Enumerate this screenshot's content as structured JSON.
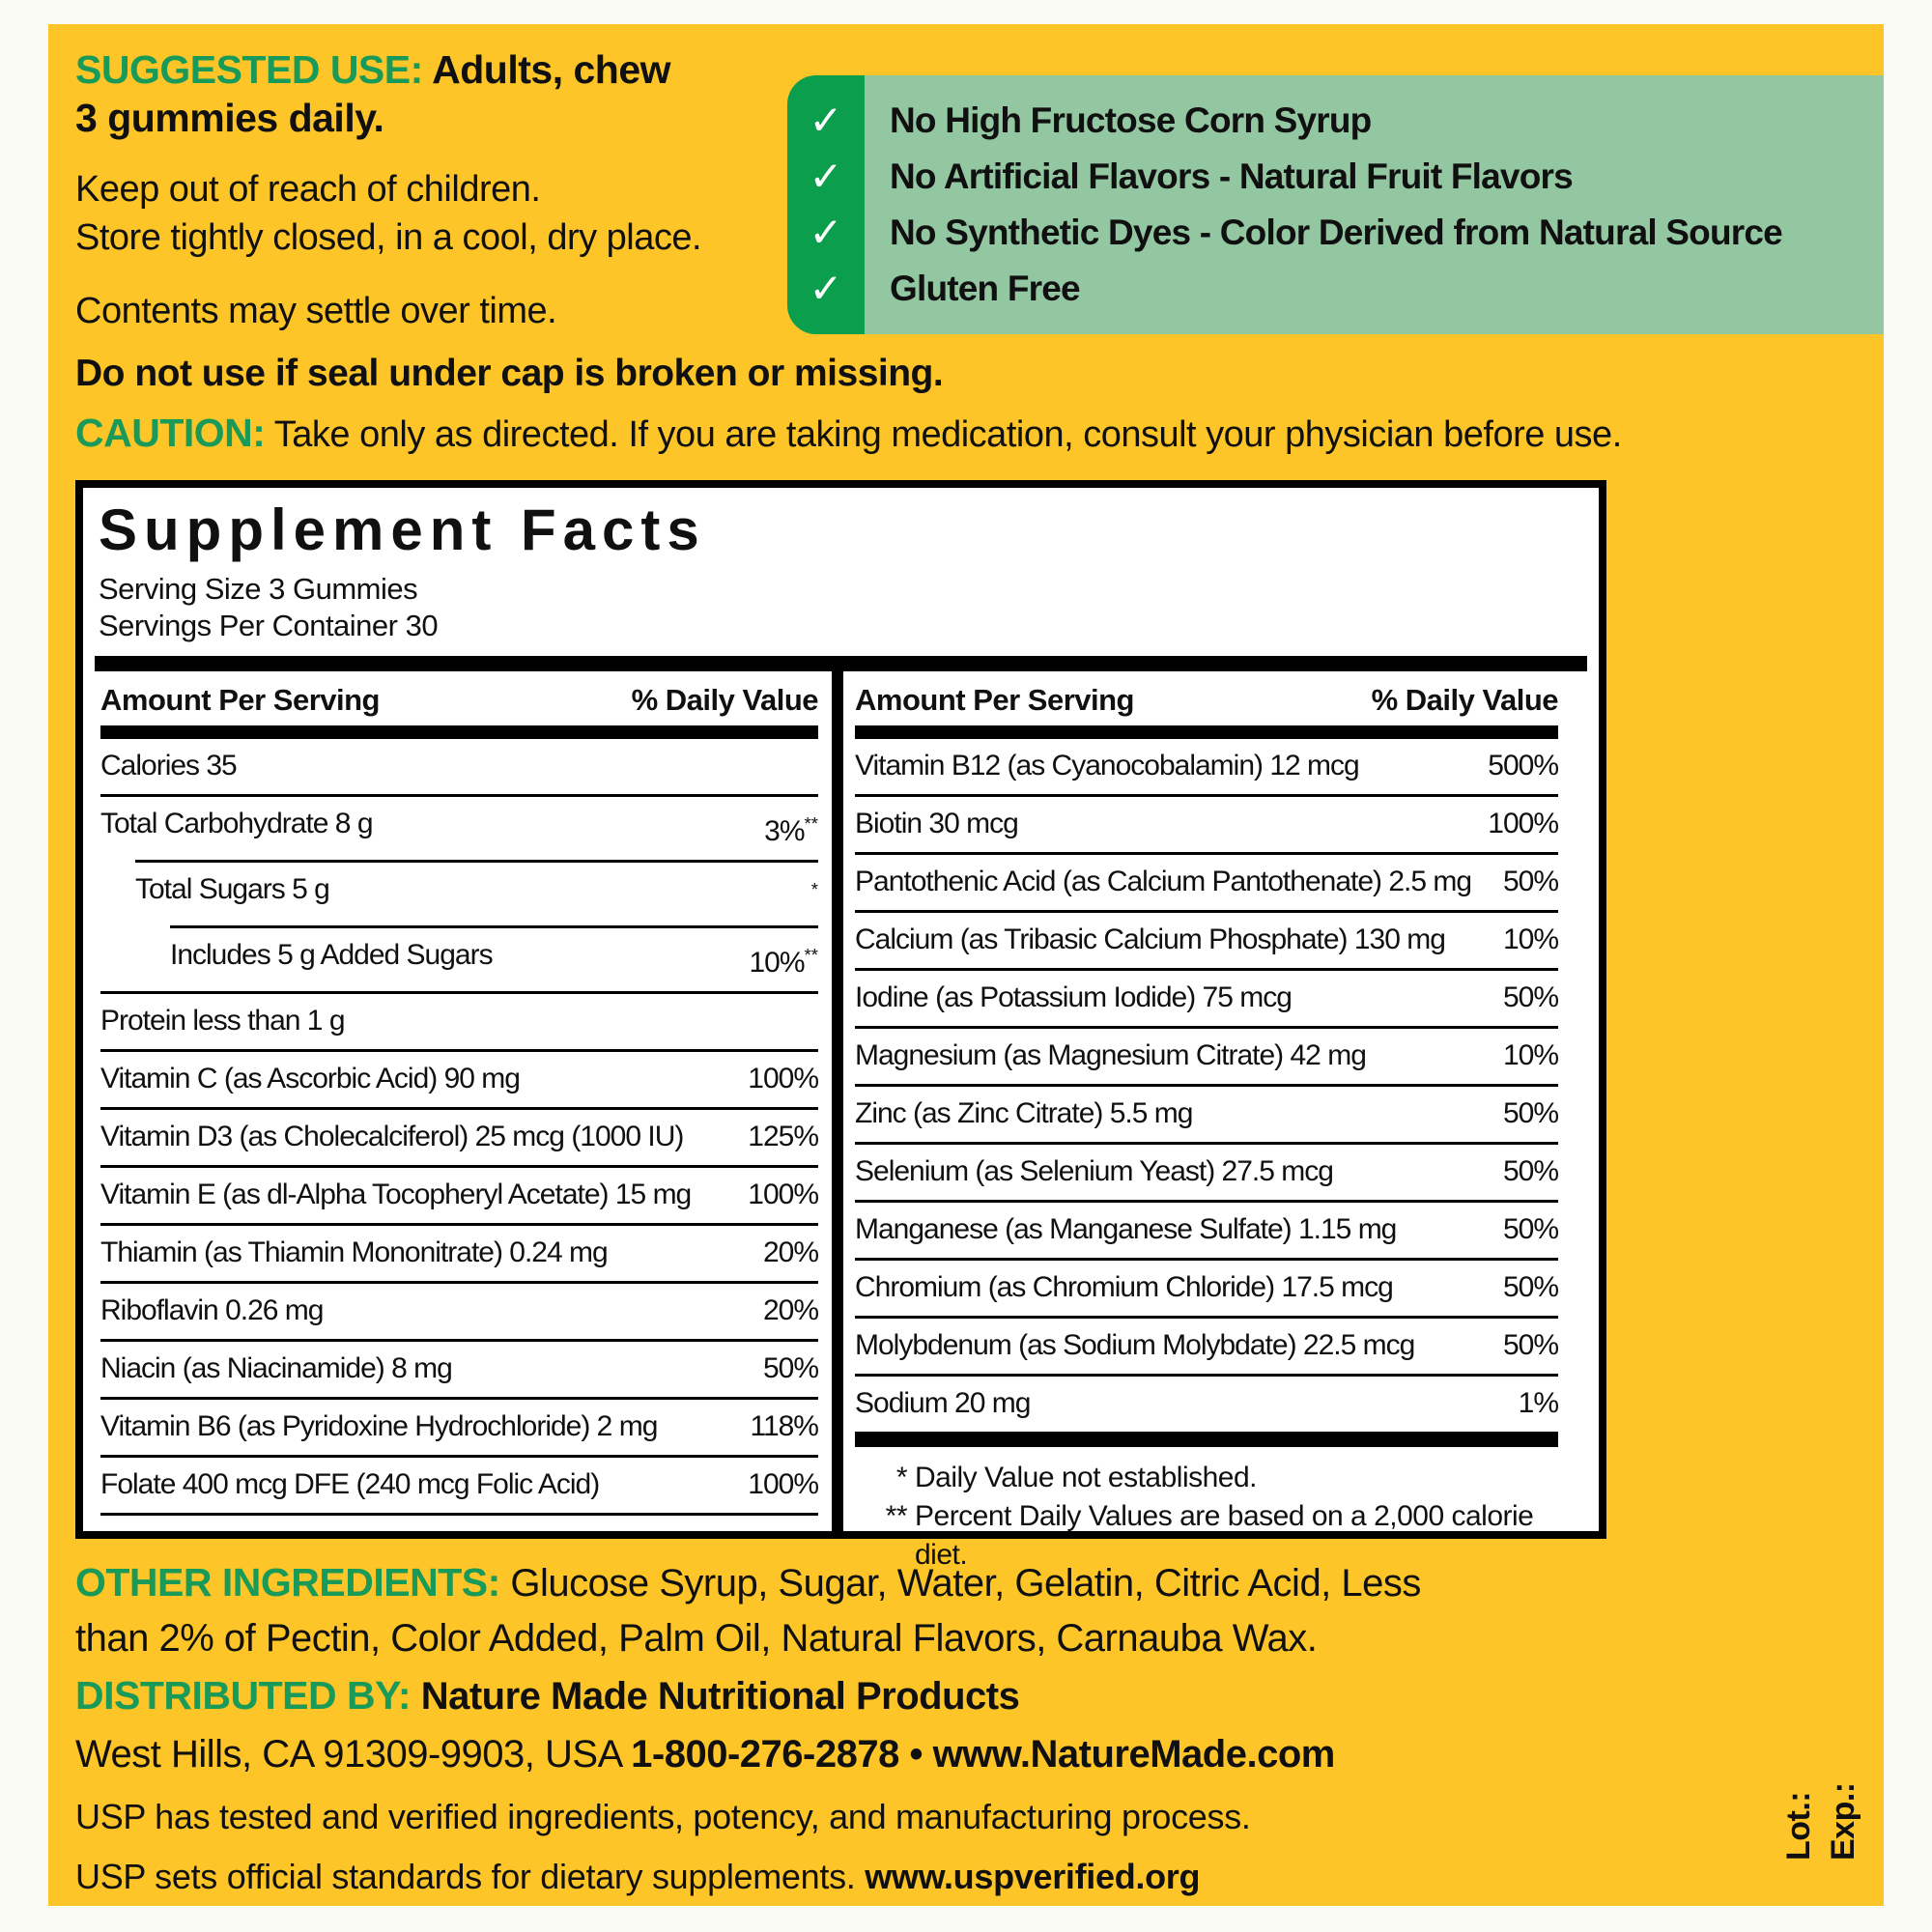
{
  "colors": {
    "yellow": "#fdc527",
    "green": "#1a9a58",
    "dark_green": "#0a9e4d",
    "light_green": "#93c7a2"
  },
  "top": {
    "suggested_use_label": "SUGGESTED USE:",
    "suggested_use_line1": " Adults, chew",
    "suggested_use_line2": "3 gummies daily.",
    "storage_line1": "Keep out of reach of children.",
    "storage_line2": "Store tightly closed, in a cool, dry place.",
    "settle_line": "Contents may settle over time.",
    "seal_warning": "Do not use if seal under cap is broken or missing.",
    "caution_label": "CAUTION:",
    "caution_text": " Take only as directed. If you are taking medication, consult your physician before use."
  },
  "checklist": {
    "check_glyph": "✓",
    "items": [
      "No High Fructose Corn Syrup",
      "No Artificial Flavors - Natural Fruit Flavors",
      "No Synthetic Dyes - Color Derived from Natural Source",
      "Gluten Free"
    ]
  },
  "supplement_facts": {
    "title": "Supplement Facts",
    "serving_size": "Serving Size 3 Gummies",
    "servings_per_container": "Servings Per Container 30",
    "amount_header": "Amount Per Serving",
    "dv_header": "% Daily Value",
    "left_rows": [
      {
        "name": "Calories 35",
        "value": "",
        "indent": 0
      },
      {
        "name": "Total Carbohydrate 8 g",
        "value": "3%**",
        "indent": 0
      },
      {
        "name": "Total Sugars 5 g",
        "value": "*",
        "indent": 1
      },
      {
        "name": "Includes 5 g Added Sugars",
        "value": "10%**",
        "indent": 2
      },
      {
        "name": "Protein less than 1 g",
        "value": "",
        "indent": 0
      },
      {
        "name": "Vitamin C (as Ascorbic Acid) 90 mg",
        "value": "100%",
        "indent": 0
      },
      {
        "name": "Vitamin D3 (as Cholecalciferol) 25 mcg (1000 IU)",
        "value": "125%",
        "indent": 0
      },
      {
        "name": "Vitamin E (as dl-Alpha Tocopheryl Acetate) 15 mg",
        "value": "100%",
        "indent": 0
      },
      {
        "name": "Thiamin (as Thiamin Mononitrate) 0.24 mg",
        "value": "20%",
        "indent": 0
      },
      {
        "name": "Riboflavin 0.26 mg",
        "value": "20%",
        "indent": 0
      },
      {
        "name": "Niacin (as Niacinamide) 8 mg",
        "value": "50%",
        "indent": 0
      },
      {
        "name": "Vitamin B6 (as Pyridoxine Hydrochloride) 2 mg",
        "value": "118%",
        "indent": 0
      },
      {
        "name": "Folate 400 mcg DFE (240 mcg Folic Acid)",
        "value": "100%",
        "indent": 0
      }
    ],
    "right_rows": [
      {
        "name": "Vitamin B12 (as Cyanocobalamin) 12 mcg",
        "value": "500%",
        "indent": 0
      },
      {
        "name": "Biotin 30 mcg",
        "value": "100%",
        "indent": 0
      },
      {
        "name": "Pantothenic Acid (as Calcium Pantothenate) 2.5 mg",
        "value": "50%",
        "indent": 0
      },
      {
        "name": "Calcium (as Tribasic Calcium Phosphate) 130 mg",
        "value": "10%",
        "indent": 0
      },
      {
        "name": "Iodine (as Potassium Iodide) 75 mcg",
        "value": "50%",
        "indent": 0
      },
      {
        "name": "Magnesium (as Magnesium Citrate) 42 mg",
        "value": "10%",
        "indent": 0
      },
      {
        "name": "Zinc (as Zinc Citrate) 5.5 mg",
        "value": "50%",
        "indent": 0
      },
      {
        "name": "Selenium (as Selenium Yeast) 27.5 mcg",
        "value": "50%",
        "indent": 0
      },
      {
        "name": "Manganese (as Manganese Sulfate) 1.15 mg",
        "value": "50%",
        "indent": 0
      },
      {
        "name": "Chromium (as Chromium Chloride) 17.5 mcg",
        "value": "50%",
        "indent": 0
      },
      {
        "name": "Molybdenum (as Sodium Molybdate) 22.5 mcg",
        "value": "50%",
        "indent": 0
      },
      {
        "name": "Sodium 20 mg",
        "value": "1%",
        "indent": 0
      }
    ],
    "footnotes": [
      {
        "star": "*",
        "text": "Daily Value not established."
      },
      {
        "star": "**",
        "text": "Percent Daily Values are based on a 2,000 calorie diet."
      }
    ]
  },
  "bottom": {
    "other_ingredients_label": "OTHER INGREDIENTS:",
    "other_ingredients_line1": " Glucose Syrup, Sugar, Water, Gelatin, Citric Acid, Less",
    "other_ingredients_line2": "than 2% of Pectin, Color Added, Palm Oil, Natural Flavors, Carnauba Wax.",
    "distributed_label": "DISTRIBUTED BY:",
    "distributed_company": " Nature Made Nutritional Products",
    "address_regular": "West Hills, CA 91309-9903, USA ",
    "address_bold": "1-800-276-2878 • www.NatureMade.com",
    "usp_line1": "USP has tested and verified ingredients, potency, and manufacturing process.",
    "usp_line2_regular": "USP sets official standards for dietary supplements. ",
    "usp_line2_bold": "www.uspverified.org",
    "lot_label": "Lot.:",
    "exp_label": "Exp.:"
  }
}
